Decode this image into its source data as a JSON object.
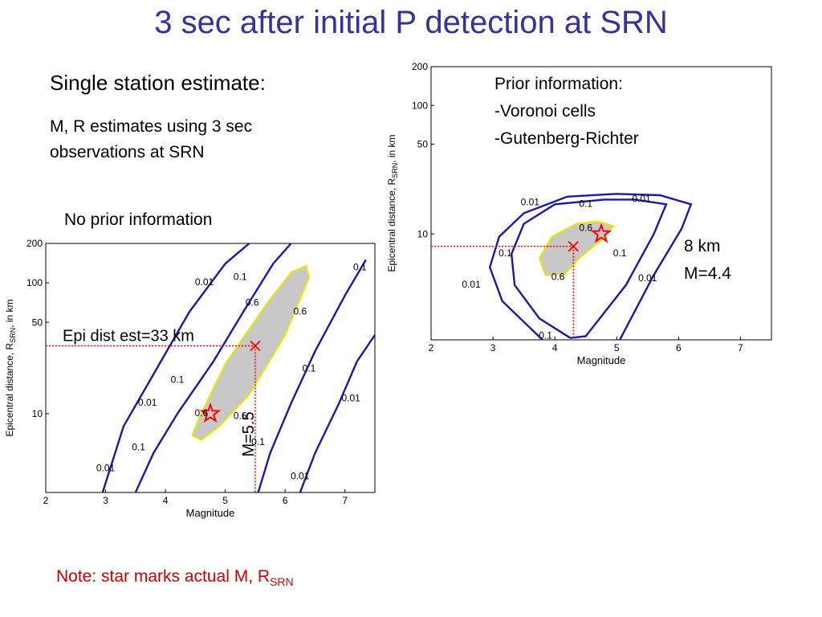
{
  "title": "3 sec after initial P detection at SRN",
  "left_text": {
    "heading": "Single station estimate:",
    "description": "M, R estimates using 3 sec observations at SRN",
    "subheading": "No prior information"
  },
  "right_text": {
    "prior_lines": [
      "Prior information:",
      "-Voronoi cells",
      "-Gutenberg-Richter"
    ],
    "result_lines": [
      "8 km",
      "M=4.4"
    ]
  },
  "note": {
    "text": "Note: star marks actual M, R",
    "subscript": "SRN"
  },
  "colors": {
    "title": "#333399",
    "contour": "#1a1aa6",
    "region_fill": "#c8c8c8",
    "region_edge": "#e8e800",
    "marker": "#ff0000",
    "note": "#cc0000"
  },
  "chart_data": [
    {
      "type": "line",
      "subtype": "contour",
      "title": "",
      "xlabel": "Magnitude",
      "ylabel": "Epicentral distance, R",
      "ylabel_sub": "SRN",
      "ylabel_suffix": ", in km",
      "xlim": [
        2,
        7.5
      ],
      "ylim": [
        2.5,
        200
      ],
      "yscale": "log",
      "xticks": [
        2,
        3,
        4,
        5,
        6,
        7
      ],
      "yticks": [
        10,
        50,
        100,
        200
      ],
      "contour_levels": [
        "0.01",
        "0.1",
        "0.6"
      ],
      "contours": [
        {
          "level": "0.01",
          "points": [
            [
              2.95,
              2.5
            ],
            [
              3.3,
              8
            ],
            [
              3.8,
              20
            ],
            [
              4.4,
              60
            ],
            [
              5.0,
              140
            ],
            [
              5.4,
              200
            ]
          ]
        },
        {
          "level": "0.1",
          "points": [
            [
              3.5,
              2.5
            ],
            [
              3.8,
              5
            ],
            [
              4.2,
              10
            ],
            [
              4.8,
              25
            ],
            [
              5.3,
              60
            ],
            [
              5.8,
              140
            ],
            [
              6.1,
              200
            ]
          ]
        },
        {
          "level": "0.1",
          "points": [
            [
              5.55,
              2.5
            ],
            [
              5.75,
              5
            ],
            [
              6.1,
              12
            ],
            [
              6.5,
              30
            ],
            [
              7.0,
              80
            ],
            [
              7.35,
              150
            ]
          ]
        },
        {
          "level": "0.01",
          "points": [
            [
              6.25,
              2.5
            ],
            [
              6.5,
              5
            ],
            [
              6.9,
              12
            ],
            [
              7.2,
              25
            ],
            [
              7.5,
              40
            ]
          ]
        }
      ],
      "region_0.6_outline": [
        [
          4.6,
          6.3
        ],
        [
          4.9,
          8
        ],
        [
          5.4,
          14
        ],
        [
          6.0,
          40
        ],
        [
          6.4,
          110
        ],
        [
          6.35,
          135
        ],
        [
          6.1,
          120
        ],
        [
          5.7,
          70
        ],
        [
          5.0,
          24
        ],
        [
          4.55,
          9
        ],
        [
          4.45,
          6.8
        ],
        [
          4.6,
          6.3
        ]
      ],
      "contour_labels": [
        {
          "text": "0.01",
          "x": 4.65,
          "y": 100
        },
        {
          "text": "0.1",
          "x": 5.25,
          "y": 110
        },
        {
          "text": "0.6",
          "x": 5.45,
          "y": 70
        },
        {
          "text": "0.6",
          "x": 6.25,
          "y": 60
        },
        {
          "text": "0.1",
          "x": 7.25,
          "y": 130
        },
        {
          "text": "0.01",
          "x": 3.7,
          "y": 12
        },
        {
          "text": "0.1",
          "x": 4.2,
          "y": 18
        },
        {
          "text": "0.6",
          "x": 4.6,
          "y": 10
        },
        {
          "text": "0.6",
          "x": 5.25,
          "y": 9.5
        },
        {
          "text": "0.1",
          "x": 6.4,
          "y": 22
        },
        {
          "text": "0.01",
          "x": 7.1,
          "y": 13
        },
        {
          "text": "0.1",
          "x": 3.55,
          "y": 5.5
        },
        {
          "text": "0.01",
          "x": 3.0,
          "y": 3.8
        },
        {
          "text": "0.1",
          "x": 5.55,
          "y": 6
        },
        {
          "text": "0.01",
          "x": 6.25,
          "y": 3.3
        }
      ],
      "estimate": {
        "x": 5.5,
        "y": 33
      },
      "actual": {
        "x": 4.75,
        "y": 10
      },
      "annotations": {
        "distance": "Epi dist est=33 km",
        "magnitude": "M=5.5"
      }
    },
    {
      "type": "line",
      "subtype": "contour",
      "title": "",
      "xlabel": "Magnitude",
      "ylabel": "Epicentral distance, R",
      "ylabel_sub": "SRN",
      "ylabel_suffix": ", in km",
      "xlim": [
        2,
        7.5
      ],
      "ylim": [
        1.5,
        200
      ],
      "yscale": "log",
      "xticks": [
        2,
        3,
        4,
        5,
        6,
        7
      ],
      "yticks": [
        10,
        50,
        100,
        200
      ],
      "contour_levels": [
        "0.01",
        "0.1",
        "0.6"
      ],
      "contours": [
        {
          "level": "0.01",
          "points": [
            [
              3.8,
              1.5
            ],
            [
              3.15,
              3
            ],
            [
              2.95,
              5.5
            ],
            [
              3.1,
              9.5
            ],
            [
              3.5,
              14.5
            ],
            [
              4.2,
              19.5
            ],
            [
              5.0,
              20.5
            ],
            [
              5.7,
              20
            ],
            [
              6.2,
              17
            ],
            [
              6.05,
              11
            ],
            [
              5.6,
              4.8
            ],
            [
              5.05,
              1.5
            ]
          ]
        },
        {
          "level": "0.1",
          "points": [
            [
              4.25,
              1.55
            ],
            [
              3.75,
              2.2
            ],
            [
              3.35,
              4
            ],
            [
              3.3,
              7
            ],
            [
              3.5,
              12
            ],
            [
              4.0,
              17
            ],
            [
              4.8,
              18.5
            ],
            [
              5.3,
              18.5
            ],
            [
              5.8,
              17
            ],
            [
              5.6,
              10
            ],
            [
              5.15,
              4
            ],
            [
              4.5,
              1.6
            ],
            [
              4.25,
              1.55
            ]
          ]
        },
        {
          "level": "0.6",
          "points": [
            [
              3.85,
              4.8
            ],
            [
              3.75,
              6.5
            ],
            [
              3.95,
              9.5
            ],
            [
              4.35,
              12
            ],
            [
              4.7,
              12.5
            ],
            [
              4.95,
              11.5
            ],
            [
              4.75,
              9
            ],
            [
              4.4,
              6.5
            ],
            [
              4.15,
              4.8
            ],
            [
              3.85,
              4.8
            ]
          ]
        }
      ],
      "contour_labels": [
        {
          "text": "0.01",
          "x": 3.6,
          "y": 17.5
        },
        {
          "text": "0.1",
          "x": 4.5,
          "y": 17
        },
        {
          "text": "0.01",
          "x": 5.4,
          "y": 18.5
        },
        {
          "text": "0.6",
          "x": 4.5,
          "y": 11
        },
        {
          "text": "0.1",
          "x": 3.2,
          "y": 7
        },
        {
          "text": "0.6",
          "x": 4.05,
          "y": 4.6
        },
        {
          "text": "0.1",
          "x": 5.05,
          "y": 7
        },
        {
          "text": "0.01",
          "x": 2.65,
          "y": 4
        },
        {
          "text": "0.01",
          "x": 5.5,
          "y": 4.5
        },
        {
          "text": "0.1",
          "x": 3.85,
          "y": 1.6
        }
      ],
      "estimate": {
        "x": 4.3,
        "y": 8
      },
      "actual": {
        "x": 4.75,
        "y": 10
      }
    }
  ]
}
